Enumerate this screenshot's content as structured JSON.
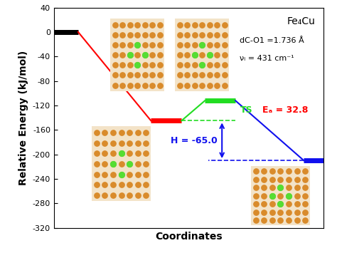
{
  "chart_data": {
    "type": "line",
    "title": "Fe₄Cu",
    "x_label": "Coordinates",
    "y_label": "Relative Energy (kJ/mol)",
    "x": [
      0.1,
      1.25,
      1.85,
      2.95
    ],
    "values": [
      0,
      -145,
      -112.2,
      -210
    ],
    "colors": [
      "#000000",
      "#ff0000",
      "#22dd22",
      "#1010ee"
    ],
    "xlim": [
      0,
      3
    ],
    "ylim": [
      -320,
      40
    ],
    "yticks": [
      -320,
      -280,
      -240,
      -200,
      -160,
      -120,
      -80,
      -40,
      0,
      40
    ],
    "tick_labels": "y",
    "annotations": [
      "TS",
      "Eₐ = 32.8",
      "H = -65.0",
      "dC-O1 =1.736 Å",
      "νᵢ = 431 cm⁻¹"
    ]
  }
}
